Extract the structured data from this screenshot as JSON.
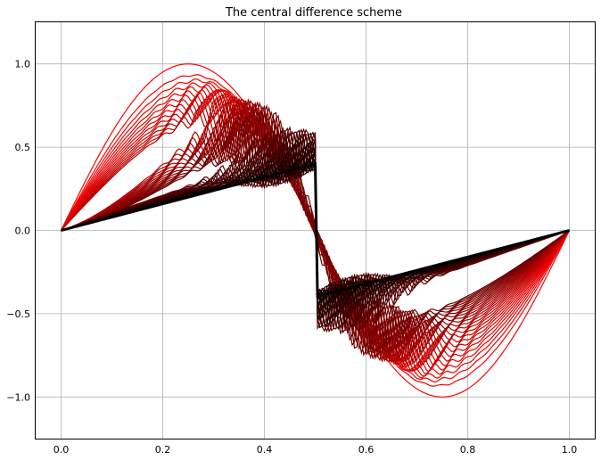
{
  "chart_data": {
    "type": "line",
    "title": "The central difference scheme",
    "xlabel": "",
    "ylabel": "",
    "xlim": [
      -0.05,
      1.05
    ],
    "ylim": [
      -1.25,
      1.25
    ],
    "xticks": [
      0.0,
      0.2,
      0.4,
      0.6,
      0.8,
      1.0
    ],
    "xtick_labels": [
      "0.0",
      "0.2",
      "0.4",
      "0.6",
      "0.8",
      "1.0"
    ],
    "yticks": [
      -1.0,
      -0.5,
      0.0,
      0.5,
      1.0
    ],
    "ytick_labels": [
      "−1.0",
      "−0.5",
      "0.0",
      "0.5",
      "1.0"
    ],
    "grid": true,
    "legend": "none",
    "n_series": 50,
    "color_start": "#ff0000",
    "color_end": "#000000",
    "initial_curve": {
      "description_points_x": [
        0.0,
        0.25,
        0.5,
        0.75,
        1.0
      ],
      "y": [
        0.0,
        1.0,
        0.0,
        -1.0,
        0.0
      ]
    },
    "final_curve": {
      "x": [
        0.0,
        0.1,
        0.2,
        0.3,
        0.4,
        0.45,
        0.49,
        0.5,
        0.51,
        0.55,
        0.6,
        0.7,
        0.8,
        0.9,
        1.0
      ],
      "y": [
        -0.01,
        0.09,
        0.18,
        0.27,
        0.37,
        0.41,
        0.44,
        0.0,
        -0.44,
        -0.41,
        -0.37,
        -0.27,
        -0.18,
        -0.09,
        0.01
      ]
    }
  }
}
